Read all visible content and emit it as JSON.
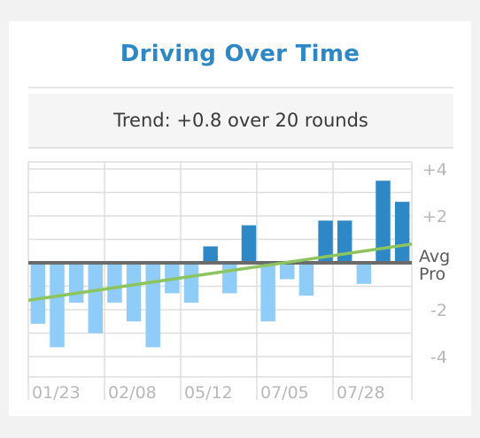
{
  "header": {
    "title": "Driving Over Time",
    "trend_text": "Trend: +0.8 over 20 rounds"
  },
  "colors": {
    "title": "#2f88c6",
    "positive_bar": "#2f88c6",
    "negative_bar": "#8fccf7",
    "avg_line": "#6b6b6b",
    "pro_line": "#8cc45f",
    "grid": "#dedede",
    "tick_text": "#b8b8b8",
    "label_text": "#5a5a5a"
  },
  "chart_data": {
    "type": "bar",
    "title": "Driving Over Time",
    "xlabel": "",
    "ylabel": "",
    "ylim": [
      -5,
      5
    ],
    "y_ticks": [
      {
        "value": 4,
        "label": "+4"
      },
      {
        "value": 2,
        "label": "+2"
      },
      {
        "value": -2,
        "label": "-2"
      },
      {
        "value": -4,
        "label": "-4"
      }
    ],
    "x_tick_labels": [
      "01/23",
      "02/08",
      "05/12",
      "07/05",
      "07/28"
    ],
    "values": [
      -2.6,
      -3.6,
      -1.7,
      -3.0,
      -1.7,
      -2.5,
      -3.6,
      -1.3,
      -1.7,
      0.7,
      -1.3,
      1.6,
      -2.5,
      -0.7,
      -1.4,
      1.8,
      1.8,
      -0.9,
      3.5,
      2.6
    ],
    "reference_lines": [
      {
        "name": "Avg",
        "value": 0
      },
      {
        "name": "Pro",
        "trend_start": -1.6,
        "trend_end": 0.8
      }
    ],
    "grid": true
  }
}
